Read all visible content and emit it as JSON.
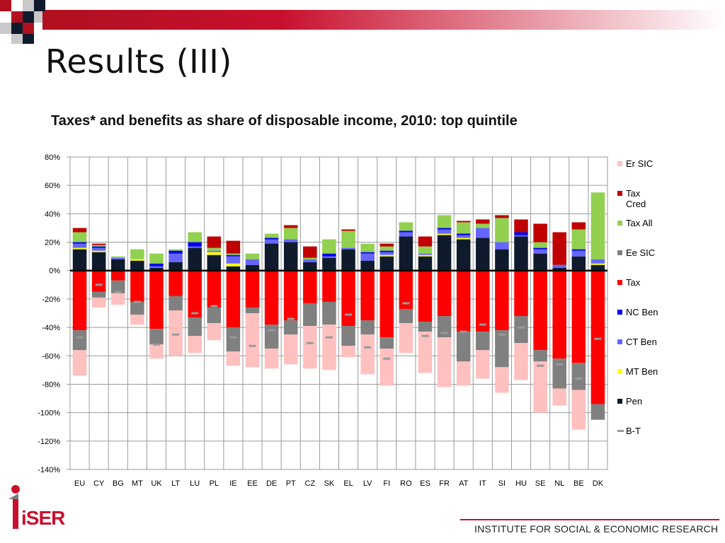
{
  "slide": {
    "title": "Results (III)",
    "footer": "INSTITUTE FOR SOCIAL & ECONOMIC RESEARCH",
    "logo_text": "iSER"
  },
  "colors": {
    "accent": "#c8102e",
    "er_sic": "#ffc0c0",
    "tax_cred": "#c00000",
    "tax_all": "#92d050",
    "ee_sic": "#808080",
    "tax": "#ff0000",
    "nc_ben": "#0000ee",
    "ct_ben": "#6666ff",
    "mt_ben": "#ffff00",
    "pen": "#0f1b2d",
    "b_t": "#999999"
  },
  "chart_data": {
    "type": "bar",
    "stacked": true,
    "title": "Taxes* and benefits as share of disposable income, 2010: top quintile",
    "xlabel": "",
    "ylabel": "",
    "ylim": [
      -140,
      80
    ],
    "yticks": [
      80,
      60,
      40,
      20,
      0,
      -20,
      -40,
      -60,
      -80,
      -100,
      -120,
      -140
    ],
    "ytick_labels": [
      "80%",
      "60%",
      "40%",
      "20%",
      "0%",
      "-20%",
      "-40%",
      "-60%",
      "-80%",
      "-100%",
      "-120%",
      "-140%"
    ],
    "grid": true,
    "legend_position": "right",
    "categories": [
      "EU",
      "CY",
      "BG",
      "MT",
      "UK",
      "LT",
      "LU",
      "PL",
      "IE",
      "EE",
      "DE",
      "PT",
      "CZ",
      "SK",
      "EL",
      "LV",
      "FI",
      "RO",
      "ES",
      "FR",
      "AT",
      "IT",
      "SI",
      "HU",
      "SE",
      "NL",
      "BE",
      "DK"
    ],
    "series": [
      {
        "name": "Er SIC",
        "key": "er_sic",
        "kind": "neg",
        "values": [
          -18,
          -7,
          -8,
          -7,
          -10,
          -32,
          -12,
          -12,
          -10,
          -38,
          -14,
          -21,
          -30,
          -32,
          -8,
          -28,
          -26,
          -21,
          -29,
          -35,
          -17,
          -20,
          -18,
          -26,
          -36,
          -12,
          -28,
          0
        ]
      },
      {
        "name": "Tax Cred",
        "key": "tax_cred",
        "kind": "pos",
        "values": [
          3,
          1,
          0,
          0,
          0,
          0,
          0,
          8,
          9,
          0,
          0,
          2,
          8,
          0,
          1,
          0,
          2,
          0,
          7,
          0,
          1,
          3,
          2,
          9,
          13,
          23,
          5,
          0
        ]
      },
      {
        "name": "Tax All",
        "key": "tax_all",
        "kind": "pos",
        "values": [
          7,
          1,
          1,
          7,
          7,
          1,
          7,
          2,
          1,
          4,
          3,
          8,
          1,
          10,
          12,
          6,
          3,
          6,
          5,
          9,
          8,
          3,
          17,
          0,
          4,
          0,
          14,
          47
        ]
      },
      {
        "name": "Ee SIC",
        "key": "ee_sic",
        "kind": "neg",
        "values": [
          -14,
          -4,
          -9,
          -9,
          -11,
          -10,
          -13,
          -11,
          -17,
          -4,
          -17,
          -10,
          -16,
          -16,
          -14,
          -10,
          -8,
          -10,
          -7,
          -15,
          -21,
          -13,
          -26,
          -19,
          -8,
          -21,
          -19,
          -11
        ]
      },
      {
        "name": "Tax",
        "key": "tax",
        "kind": "neg",
        "values": [
          -42,
          -15,
          -7,
          -22,
          -41,
          -18,
          -33,
          -26,
          -40,
          -26,
          -38,
          -35,
          -23,
          -22,
          -39,
          -35,
          -47,
          -27,
          -36,
          -32,
          -43,
          -43,
          -42,
          -32,
          -56,
          -62,
          -65,
          -94
        ]
      },
      {
        "name": "NC Ben",
        "key": "nc_ben",
        "kind": "pos",
        "values": [
          1,
          1,
          0,
          0,
          2,
          2,
          3,
          0,
          1,
          0,
          1,
          0,
          0,
          2,
          0,
          1,
          1,
          1,
          0,
          1,
          1,
          0,
          0,
          2,
          1,
          0,
          1,
          0
        ]
      },
      {
        "name": "CT Ben",
        "key": "ct_ben",
        "kind": "pos",
        "values": [
          3,
          2,
          1,
          0,
          1,
          6,
          1,
          1,
          5,
          4,
          3,
          2,
          2,
          1,
          1,
          5,
          2,
          3,
          1,
          3,
          2,
          7,
          5,
          1,
          3,
          2,
          4,
          3
        ]
      },
      {
        "name": "MT Ben",
        "key": "mt_ben",
        "kind": "pos",
        "values": [
          1,
          1,
          0,
          1,
          0,
          0,
          0,
          2,
          2,
          0,
          0,
          0,
          0,
          0,
          0,
          0,
          1,
          0,
          1,
          1,
          1,
          0,
          0,
          0,
          0,
          0,
          0,
          1
        ]
      },
      {
        "name": "Pen",
        "key": "pen",
        "kind": "pos",
        "values": [
          15,
          13,
          8,
          7,
          2,
          6,
          16,
          11,
          3,
          4,
          19,
          20,
          6,
          9,
          15,
          7,
          10,
          24,
          10,
          25,
          22,
          23,
          15,
          24,
          12,
          2,
          10,
          4
        ]
      },
      {
        "name": "B-T",
        "key": "b_t",
        "kind": "marker",
        "values": [
          -47,
          -10,
          -15,
          -22,
          -52,
          -45,
          -30,
          -25,
          -47,
          -53,
          -42,
          -34,
          -51,
          -47,
          -31,
          -54,
          -62,
          -23,
          -46,
          -44,
          -43,
          -38,
          -45,
          -40,
          -67,
          -66,
          -76,
          -48
        ]
      }
    ]
  }
}
